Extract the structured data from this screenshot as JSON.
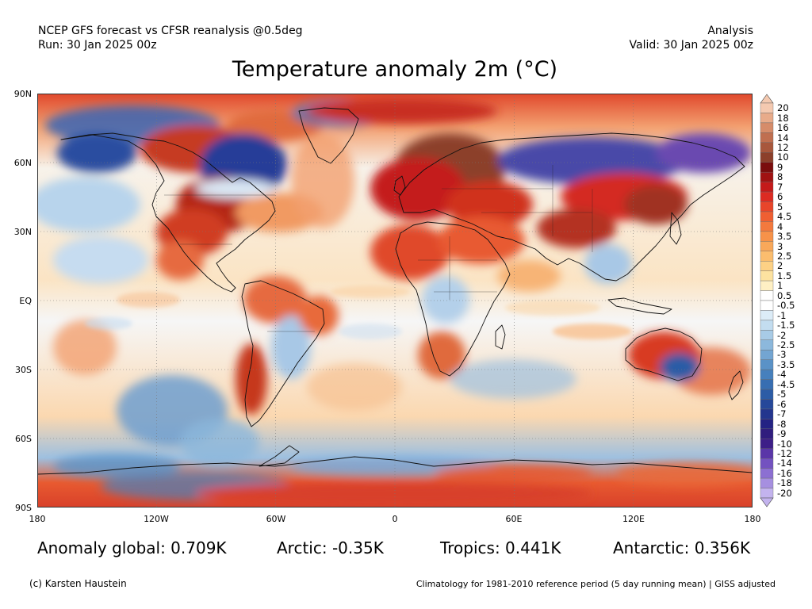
{
  "header": {
    "model_line": "NCEP GFS forecast vs CFSR reanalysis @0.5deg",
    "run_line": "Run: 30 Jan 2025 00z",
    "type_line": "Analysis",
    "valid_line": "Valid: 30 Jan 2025 00z"
  },
  "title": "Temperature anomaly 2m (°C)",
  "axes": {
    "y_labels": [
      "90N",
      "60N",
      "30N",
      "EQ",
      "30S",
      "60S",
      "90S"
    ],
    "x_labels": [
      "180",
      "120W",
      "60W",
      "0",
      "60E",
      "120E",
      "180"
    ],
    "grid": "dotted"
  },
  "colorbar": {
    "labels": [
      "20",
      "18",
      "16",
      "14",
      "12",
      "10",
      "9",
      "8",
      "7",
      "6",
      "5",
      "4.5",
      "4",
      "3.5",
      "3",
      "2.5",
      "2",
      "1.5",
      "1",
      "0.5",
      "-0.5",
      "-1",
      "-1.5",
      "-2",
      "-2.5",
      "-3",
      "-3.5",
      "-4",
      "-4.5",
      "-5",
      "-6",
      "-7",
      "-8",
      "-9",
      "-10",
      "-12",
      "-14",
      "-16",
      "-18",
      "-20"
    ],
    "colors": [
      "#f4c9b0",
      "#e8ab8a",
      "#d68c6a",
      "#c06f50",
      "#a8573c",
      "#8c3f2a",
      "#7a0d0d",
      "#a01212",
      "#c41a1a",
      "#dc2b22",
      "#e8452a",
      "#ef5f32",
      "#f3793d",
      "#f79249",
      "#f9a85a",
      "#fbbd6e",
      "#fdd185",
      "#fde2a0",
      "#fff0c4",
      "#ffffff",
      "#ffffff",
      "#dcecf7",
      "#c3ddf0",
      "#a8cbe6",
      "#8cb8dc",
      "#73a5d2",
      "#5a92c7",
      "#4680bd",
      "#376eb2",
      "#2c5ca6",
      "#26489a",
      "#23358e",
      "#242384",
      "#301d7e",
      "#3d1e88",
      "#5a36a8",
      "#7352c0",
      "#8c6fd2",
      "#a68fe0",
      "#c3b3ee"
    ]
  },
  "stats": {
    "global": "Anomaly global: 0.709K",
    "arctic": "Arctic: -0.35K",
    "tropics": "Tropics: 0.441K",
    "antarctic": "Antarctic: 0.356K"
  },
  "footer": {
    "left": "(c) Karsten Haustein",
    "right": "Climatology for 1981-2010 reference period (5 day running mean) | GISS adjusted"
  }
}
